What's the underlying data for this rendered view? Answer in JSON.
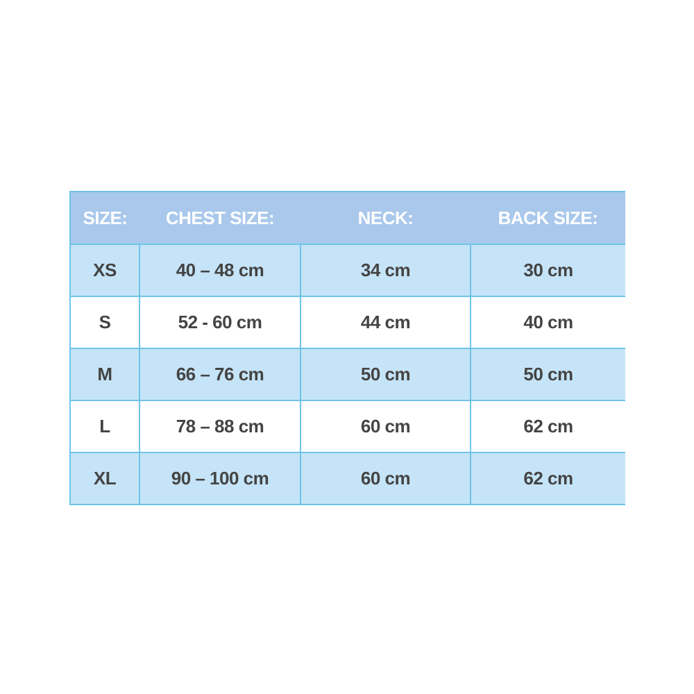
{
  "table": {
    "header": [
      "SIZE:",
      "CHEST SIZE:",
      "NECK:",
      "BACK SIZE:"
    ],
    "rows": [
      [
        "XS",
        "40 – 48 cm",
        "34 cm",
        "30 cm"
      ],
      [
        "S",
        "52 - 60 cm",
        "44 cm",
        "40 cm"
      ],
      [
        "M",
        "66 – 76 cm",
        "50 cm",
        "50 cm"
      ],
      [
        "L",
        "78 – 88 cm",
        "60 cm",
        "62 cm"
      ],
      [
        "XL",
        "90 – 100 cm",
        "60 cm",
        "62 cm"
      ]
    ]
  }
}
